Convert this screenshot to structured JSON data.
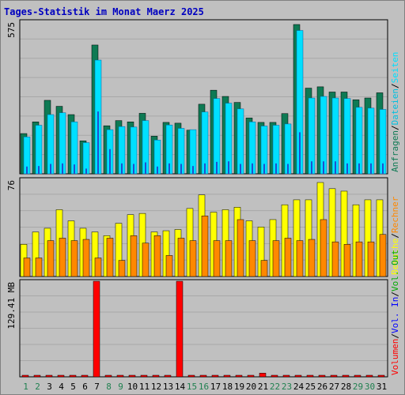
{
  "title": "Tages-Statistik im Monat Maerz 2025",
  "colors": {
    "background": "#c0c0c0",
    "title": "#0000c0",
    "anfragen": "#0e7a54",
    "dateien": "#00e0ff",
    "seiten": "#1f4fd0",
    "besuche": "#ffff00",
    "rechner": "#ff8800",
    "volumen": "#ff0000"
  },
  "chart_data": [
    {
      "type": "bar",
      "categories": [
        "1",
        "2",
        "3",
        "4",
        "5",
        "6",
        "7",
        "8",
        "9",
        "10",
        "11",
        "12",
        "13",
        "14",
        "15",
        "16",
        "17",
        "18",
        "19",
        "20",
        "21",
        "22",
        "23",
        "24",
        "25",
        "26",
        "27",
        "28",
        "29",
        "30",
        "31"
      ],
      "weekend_categories": [
        "1",
        "2",
        "8",
        "9",
        "15",
        "16",
        "22",
        "23",
        "29",
        "30"
      ],
      "ytick_label": "575",
      "ymax": 575,
      "series": [
        {
          "name": "Anfragen",
          "values": [
            155,
            200,
            283,
            260,
            228,
            127,
            496,
            185,
            205,
            200,
            233,
            145,
            198,
            195,
            168,
            268,
            322,
            298,
            275,
            215,
            198,
            198,
            232,
            575,
            330,
            335,
            315,
            315,
            285,
            292,
            312
          ]
        },
        {
          "name": "Dateien",
          "values": [
            142,
            187,
            228,
            235,
            200,
            120,
            438,
            170,
            182,
            180,
            205,
            130,
            188,
            175,
            170,
            238,
            290,
            272,
            250,
            200,
            184,
            187,
            192,
            552,
            292,
            298,
            292,
            290,
            256,
            253,
            248
          ]
        },
        {
          "name": "Seiten",
          "values": [
            28,
            30,
            38,
            40,
            36,
            20,
            240,
            95,
            40,
            38,
            44,
            28,
            40,
            38,
            30,
            40,
            46,
            48,
            38,
            40,
            38,
            40,
            38,
            160,
            48,
            48,
            48,
            40,
            40,
            40,
            40
          ]
        }
      ]
    },
    {
      "type": "bar",
      "categories": [
        "1",
        "2",
        "3",
        "4",
        "5",
        "6",
        "7",
        "8",
        "9",
        "10",
        "11",
        "12",
        "13",
        "14",
        "15",
        "16",
        "17",
        "18",
        "19",
        "20",
        "21",
        "22",
        "23",
        "24",
        "25",
        "26",
        "27",
        "28",
        "29",
        "30",
        "31"
      ],
      "ytick_label": "76",
      "ymax": 76,
      "series": [
        {
          "name": "Besuche",
          "values": [
            26,
            36,
            39,
            54,
            45,
            39,
            36,
            33,
            43,
            50,
            51,
            36,
            37,
            38,
            55,
            66,
            52,
            54,
            56,
            45,
            40,
            46,
            58,
            62,
            62,
            76,
            71,
            69,
            58,
            62,
            62
          ]
        },
        {
          "name": "Rechner",
          "values": [
            15,
            15,
            29,
            31,
            29,
            30,
            15,
            31,
            13,
            33,
            27,
            33,
            17,
            31,
            29,
            49,
            29,
            29,
            46,
            29,
            13,
            29,
            31,
            29,
            30,
            46,
            28,
            26,
            28,
            28,
            34
          ]
        }
      ]
    },
    {
      "type": "bar",
      "categories": [
        "1",
        "2",
        "3",
        "4",
        "5",
        "6",
        "7",
        "8",
        "9",
        "10",
        "11",
        "12",
        "13",
        "14",
        "15",
        "16",
        "17",
        "18",
        "19",
        "20",
        "21",
        "22",
        "23",
        "24",
        "25",
        "26",
        "27",
        "28",
        "29",
        "30",
        "31"
      ],
      "ytick_label": "129.41 MB",
      "unit": "MB",
      "ymax": 129.41,
      "series": [
        {
          "name": "Volumen",
          "values": [
            1.2,
            1.2,
            1.2,
            1.2,
            1.2,
            1.2,
            129.41,
            1.2,
            1.2,
            1.2,
            1.2,
            1.2,
            1.2,
            129.41,
            1.2,
            1.2,
            1.2,
            1.2,
            1.2,
            1.2,
            5.0,
            1.2,
            2.0,
            2.0,
            1.2,
            2.0,
            1.2,
            2.0,
            1.2,
            2.0,
            2.0
          ]
        }
      ]
    }
  ],
  "legend": {
    "panel1": [
      {
        "label": "Anfragen",
        "color": "#0e7a54"
      },
      {
        "label": "Dateien",
        "color": "#00c0e0"
      },
      {
        "label": "Seiten",
        "color": "#00e0ff"
      }
    ],
    "panel2": [
      {
        "label": "Besuche",
        "color": "#ffff00"
      },
      {
        "label": "Rechner",
        "color": "#ff8800"
      }
    ],
    "panel3": [
      {
        "label": "Volumen",
        "color": "#ff0000"
      },
      {
        "label": "Vol. In",
        "color": "#0000ff"
      },
      {
        "label": "Vol. Out",
        "color": "#00aa00"
      }
    ]
  }
}
